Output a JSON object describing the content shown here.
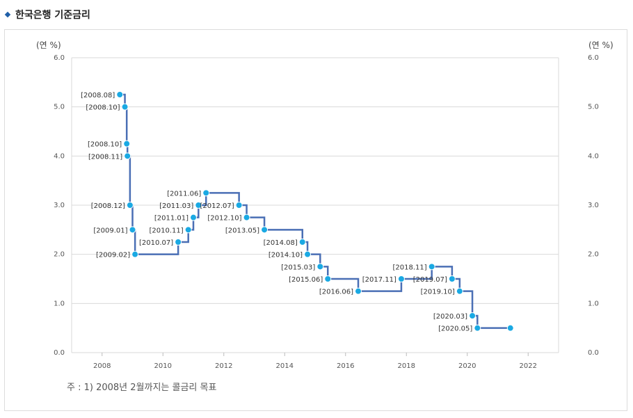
{
  "title": "한국은행 기준금리",
  "note": "주 : 1) 2008년 2월까지는 콜금리 목표",
  "colors": {
    "line": "#4a6fb5",
    "marker": "#1aa9e3",
    "grid": "#d9d9d9",
    "title_icon": "#1f5fa8"
  },
  "chart_data": {
    "type": "line",
    "step": true,
    "title": "",
    "ylabel_left": "(연 %)",
    "ylabel_right": "(연 %)",
    "xlim": [
      2007.0,
      2023.0
    ],
    "ylim": [
      0.0,
      6.0
    ],
    "x_ticks": [
      "2008",
      "2010",
      "2012",
      "2014",
      "2016",
      "2018",
      "2020",
      "2022"
    ],
    "y_ticks": [
      "0.0",
      "1.0",
      "2.0",
      "3.0",
      "4.0",
      "5.0",
      "6.0"
    ],
    "grid": true,
    "series": [
      {
        "points": [
          {
            "x": 2008.583,
            "y": 5.25,
            "label": "[2008.08]"
          },
          {
            "x": 2008.75,
            "y": 5.0,
            "label": "[2008.10]"
          },
          {
            "x": 2008.81,
            "y": 4.25,
            "label": "[2008.10]"
          },
          {
            "x": 2008.833,
            "y": 4.0,
            "label": "[2008.11]"
          },
          {
            "x": 2008.917,
            "y": 3.0,
            "label": "[2008.12]"
          },
          {
            "x": 2009.0,
            "y": 2.5,
            "label": "[2009.01]"
          },
          {
            "x": 2009.083,
            "y": 2.0,
            "label": "[2009.02]"
          },
          {
            "x": 2010.5,
            "y": 2.25,
            "label": "[2010.07]"
          },
          {
            "x": 2010.833,
            "y": 2.5,
            "label": "[2010.11]"
          },
          {
            "x": 2011.0,
            "y": 2.75,
            "label": "[2011.01]"
          },
          {
            "x": 2011.167,
            "y": 3.0,
            "label": "[2011.03]"
          },
          {
            "x": 2011.417,
            "y": 3.25,
            "label": "[2011.06]"
          },
          {
            "x": 2012.5,
            "y": 3.0,
            "label": "[2012.07]"
          },
          {
            "x": 2012.75,
            "y": 2.75,
            "label": "[2012.10]"
          },
          {
            "x": 2013.333,
            "y": 2.5,
            "label": "[2013.05]"
          },
          {
            "x": 2014.583,
            "y": 2.25,
            "label": "[2014.08]"
          },
          {
            "x": 2014.75,
            "y": 2.0,
            "label": "[2014.10]"
          },
          {
            "x": 2015.167,
            "y": 1.75,
            "label": "[2015.03]"
          },
          {
            "x": 2015.417,
            "y": 1.5,
            "label": "[2015.06]"
          },
          {
            "x": 2016.417,
            "y": 1.25,
            "label": "[2016.06]"
          },
          {
            "x": 2017.833,
            "y": 1.5,
            "label": "[2017.11]"
          },
          {
            "x": 2018.833,
            "y": 1.75,
            "label": "[2018.11]"
          },
          {
            "x": 2019.5,
            "y": 1.5,
            "label": "[2019.07]"
          },
          {
            "x": 2019.75,
            "y": 1.25,
            "label": "[2019.10]"
          },
          {
            "x": 2020.167,
            "y": 0.75,
            "label": "[2020.03]"
          },
          {
            "x": 2020.333,
            "y": 0.5,
            "label": "[2020.05]"
          },
          {
            "x": 2021.417,
            "y": 0.5,
            "label": ""
          }
        ]
      }
    ]
  }
}
